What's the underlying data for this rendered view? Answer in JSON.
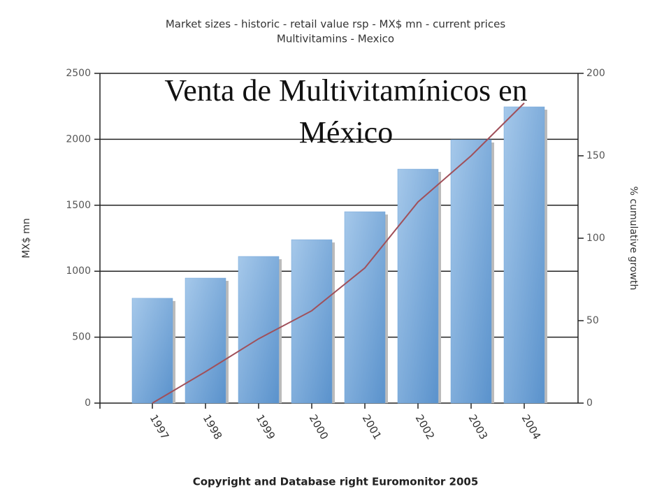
{
  "chart_data": {
    "type": "bar",
    "title": "Market sizes  - historic  - retail value rsp  - MX$ mn  - current prices",
    "subtitle": "Multivitamins - Mexico",
    "annotation": "Venta de Multivitamínicos en México",
    "y_label": "MX$ mn",
    "y2_label": "% cumulative growth",
    "footer": "Copyright and Database right Euromonitor 2005",
    "categories": [
      "1997",
      "1998",
      "1999",
      "2000",
      "2001",
      "2002",
      "2003",
      "2004"
    ],
    "series": [
      {
        "type": "bar",
        "color": "#6fa3d8",
        "values": [
          795,
          948,
          1112,
          1239,
          1451,
          1774,
          1997,
          2246
        ]
      },
      {
        "type": "line",
        "color": "#a0505a",
        "axis": "y2",
        "values": [
          0,
          19,
          39,
          56,
          82,
          122,
          150,
          182
        ]
      }
    ],
    "ylim": [
      0,
      2500
    ],
    "yticks": [
      0,
      500,
      1000,
      1500,
      2000,
      2500
    ],
    "y2lim": [
      0,
      200
    ],
    "y2ticks": [
      0,
      50,
      100,
      150,
      200
    ],
    "grid": true
  }
}
